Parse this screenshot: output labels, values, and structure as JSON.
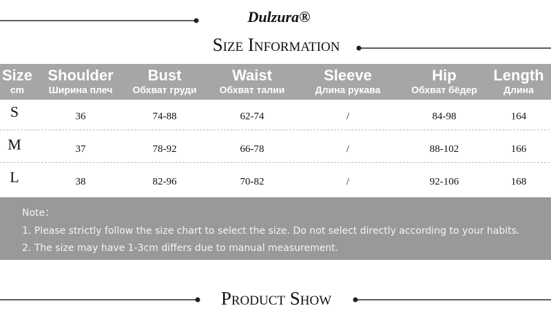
{
  "brand": "Dulzura®",
  "size_section": {
    "title": "Size Information"
  },
  "table": {
    "columns": [
      {
        "name": "Size",
        "sub": "cm"
      },
      {
        "name": "Shoulder",
        "sub": "Ширина плеч"
      },
      {
        "name": "Bust",
        "sub": "Обхват груди"
      },
      {
        "name": "Waist",
        "sub": "Обхват талии"
      },
      {
        "name": "Sleeve",
        "sub": "Длина рукава"
      },
      {
        "name": "Hip",
        "sub": "Обхват бёдер"
      },
      {
        "name": "Length",
        "sub": "Длина"
      }
    ],
    "rows": [
      [
        "S",
        "36",
        "74-88",
        "62-74",
        "/",
        "84-98",
        "164"
      ],
      [
        "M",
        "37",
        "78-92",
        "66-78",
        "/",
        "88-102",
        "166"
      ],
      [
        "L",
        "38",
        "82-96",
        "70-82",
        "/",
        "92-106",
        "168"
      ]
    ]
  },
  "notes": {
    "heading": "Note：",
    "items": [
      "1. Please strictly follow the size chart to select the size. Do not select directly according to your habits.",
      "2. The size may have 1-3cm differs due to manual measurement."
    ]
  },
  "product_section": {
    "title": "Product Show"
  }
}
